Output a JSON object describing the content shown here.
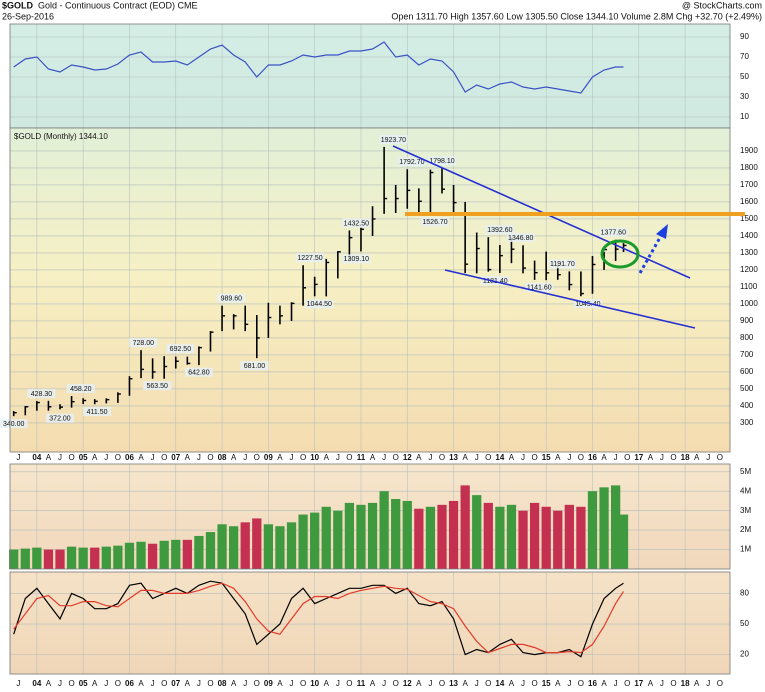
{
  "header": {
    "symbol": "$GOLD",
    "name": "Gold - Continuous Contract (EOD) CME",
    "date": "26-Sep-2016",
    "source": "@ StockCharts.com",
    "stats": "Open 1311.70 High 1357.60 Low 1305.50 Close 1344.10 Volume 2.8M Chg +32.70 (+2.49%)"
  },
  "chart_data": [
    {
      "type": "line",
      "xlim": [
        2003.42,
        2018.97
      ],
      "ylim": [
        -1,
        103
      ],
      "yticks": [
        90,
        70,
        50,
        30,
        10
      ],
      "x": [
        2003.5,
        2003.75,
        2004,
        2004.25,
        2004.5,
        2004.75,
        2005,
        2005.25,
        2005.5,
        2005.75,
        2006,
        2006.25,
        2006.5,
        2006.75,
        2007,
        2007.25,
        2007.5,
        2007.75,
        2008,
        2008.25,
        2008.5,
        2008.75,
        2009,
        2009.25,
        2009.5,
        2009.75,
        2010,
        2010.25,
        2010.5,
        2010.75,
        2011,
        2011.25,
        2011.5,
        2011.75,
        2012,
        2012.25,
        2012.5,
        2012.75,
        2013,
        2013.25,
        2013.5,
        2013.75,
        2014,
        2014.25,
        2014.5,
        2014.75,
        2015,
        2015.25,
        2015.5,
        2015.75,
        2016,
        2016.25,
        2016.5,
        2016.67
      ],
      "series": [
        {
          "color": "#3a52c4",
          "values": [
            60,
            68,
            70,
            58,
            55,
            62,
            60,
            57,
            58,
            63,
            72,
            75,
            65,
            65,
            66,
            62,
            70,
            78,
            82,
            72,
            65,
            50,
            62,
            62,
            66,
            72,
            70,
            72,
            72,
            76,
            76,
            78,
            85,
            70,
            72,
            62,
            68,
            66,
            55,
            35,
            42,
            38,
            43,
            45,
            40,
            38,
            40,
            38,
            36,
            34,
            50,
            57,
            60,
            60
          ]
        }
      ]
    },
    {
      "type": "ohlc",
      "title": "$GOLD (Monthly) 1344.10",
      "xlim": [
        2003.42,
        2018.97
      ],
      "ylim": [
        129,
        2035
      ],
      "yticks": [
        1900,
        1800,
        1700,
        1600,
        1500,
        1400,
        1300,
        1200,
        1100,
        1000,
        900,
        800,
        700,
        600,
        500,
        400,
        300
      ],
      "xticks": [
        {
          "value": 2004,
          "label": "04"
        },
        {
          "value": 2005,
          "label": "05"
        },
        {
          "value": 2006,
          "label": "06"
        },
        {
          "value": 2007,
          "label": "07"
        },
        {
          "value": 2008,
          "label": "08"
        },
        {
          "value": 2009,
          "label": "09"
        },
        {
          "value": 2010,
          "label": "10"
        },
        {
          "value": 2011,
          "label": "11"
        },
        {
          "value": 2012,
          "label": "12"
        },
        {
          "value": 2013,
          "label": "13"
        },
        {
          "value": 2014,
          "label": "14"
        },
        {
          "value": 2015,
          "label": "15"
        },
        {
          "value": 2016,
          "label": "16"
        },
        {
          "value": 2017,
          "label": "17"
        },
        {
          "value": 2018,
          "label": "18"
        }
      ],
      "month_ticks": [
        {
          "value": 2003.6,
          "label": "J"
        },
        {
          "value": 2004.25,
          "label": "A"
        },
        {
          "value": 2004.5,
          "label": "J"
        },
        {
          "value": 2004.75,
          "label": "O"
        },
        {
          "value": 2005.25,
          "label": "A"
        },
        {
          "value": 2005.5,
          "label": "J"
        },
        {
          "value": 2005.75,
          "label": "O"
        },
        {
          "value": 2006.25,
          "label": "A"
        },
        {
          "value": 2006.5,
          "label": "J"
        },
        {
          "value": 2006.75,
          "label": "O"
        },
        {
          "value": 2007.25,
          "label": "A"
        },
        {
          "value": 2007.5,
          "label": "J"
        },
        {
          "value": 2007.75,
          "label": "O"
        },
        {
          "value": 2008.25,
          "label": "A"
        },
        {
          "value": 2008.5,
          "label": "J"
        },
        {
          "value": 2008.75,
          "label": "O"
        },
        {
          "value": 2009.25,
          "label": "A"
        },
        {
          "value": 2009.5,
          "label": "J"
        },
        {
          "value": 2009.75,
          "label": "O"
        },
        {
          "value": 2010.25,
          "label": "A"
        },
        {
          "value": 2010.5,
          "label": "J"
        },
        {
          "value": 2010.75,
          "label": "O"
        },
        {
          "value": 2011.25,
          "label": "A"
        },
        {
          "value": 2011.5,
          "label": "J"
        },
        {
          "value": 2011.75,
          "label": "O"
        },
        {
          "value": 2012.25,
          "label": "A"
        },
        {
          "value": 2012.5,
          "label": "J"
        },
        {
          "value": 2012.75,
          "label": "O"
        },
        {
          "value": 2013.25,
          "label": "A"
        },
        {
          "value": 2013.5,
          "label": "J"
        },
        {
          "value": 2013.75,
          "label": "O"
        },
        {
          "value": 2014.25,
          "label": "A"
        },
        {
          "value": 2014.5,
          "label": "J"
        },
        {
          "value": 2014.75,
          "label": "O"
        },
        {
          "value": 2015.25,
          "label": "A"
        },
        {
          "value": 2015.5,
          "label": "J"
        },
        {
          "value": 2015.75,
          "label": "O"
        },
        {
          "value": 2016.25,
          "label": "A"
        },
        {
          "value": 2016.5,
          "label": "J"
        },
        {
          "value": 2016.75,
          "label": "O"
        },
        {
          "value": 2017.25,
          "label": "A"
        },
        {
          "value": 2017.5,
          "label": "J"
        },
        {
          "value": 2017.75,
          "label": "O"
        },
        {
          "value": 2018.25,
          "label": "A"
        },
        {
          "value": 2018.5,
          "label": "J"
        },
        {
          "value": 2018.75,
          "label": "O"
        }
      ],
      "color": "#000000",
      "x": [
        2003.5,
        2003.75,
        2004,
        2004.25,
        2004.5,
        2004.75,
        2005,
        2005.25,
        2005.5,
        2005.75,
        2006,
        2006.25,
        2006.5,
        2006.75,
        2007,
        2007.25,
        2007.5,
        2007.75,
        2008,
        2008.25,
        2008.5,
        2008.75,
        2009,
        2009.25,
        2009.5,
        2009.75,
        2010,
        2010.25,
        2010.5,
        2010.75,
        2011,
        2011.25,
        2011.5,
        2011.75,
        2012,
        2012.25,
        2012.5,
        2012.75,
        2013,
        2013.25,
        2013.5,
        2013.75,
        2014,
        2014.25,
        2014.5,
        2014.75,
        2015,
        2015.25,
        2015.5,
        2015.75,
        2016,
        2016.25,
        2016.5,
        2016.67
      ],
      "high": [
        370,
        400,
        428.3,
        430,
        410,
        458.2,
        445,
        440,
        445,
        480,
        575,
        728,
        680,
        692.5,
        690,
        690,
        750,
        840,
        989.6,
        940,
        990,
        935,
        1007,
        990,
        1010,
        1227.5,
        1160,
        1265,
        1310,
        1432.5,
        1448,
        1575,
        1923.7,
        1700,
        1792.7,
        1680,
        1790,
        1798.1,
        1700,
        1600,
        1420,
        1392.6,
        1346.8,
        1392,
        1345,
        1255,
        1308,
        1232,
        1191.7,
        1191,
        1282,
        1307,
        1377.6,
        1357.6
      ],
      "low": [
        340,
        345,
        372,
        372,
        380,
        390,
        411.5,
        410,
        415,
        418,
        460,
        563.5,
        560,
        560,
        620,
        642.8,
        640,
        720,
        840,
        850,
        840,
        681,
        800,
        880,
        900,
        990,
        1045,
        1044.5,
        1150,
        1250,
        1309.1,
        1400,
        1530,
        1535,
        1560,
        1530,
        1527,
        1650,
        1526.7,
        1181.4,
        1180,
        1190,
        1182,
        1240,
        1180,
        1141.6,
        1140,
        1142,
        1080,
        1045.4,
        1060,
        1200,
        1253,
        1305.5
      ],
      "close": [
        360,
        395,
        420,
        395,
        393,
        425,
        432,
        427,
        437,
        470,
        560,
        615,
        600,
        632,
        663,
        650,
        743,
        834,
        930,
        930,
        880,
        800,
        920,
        930,
        1003,
        1095,
        1115,
        1244,
        1307,
        1390,
        1439,
        1500,
        1620,
        1620,
        1668,
        1604,
        1773,
        1675,
        1596,
        1234,
        1326,
        1202,
        1284,
        1322,
        1211,
        1184,
        1183,
        1172,
        1114,
        1061,
        1232,
        1320,
        1322,
        1344.1
      ],
      "annotations": [
        {
          "x": 2003.5,
          "value": 340,
          "label": "340.00"
        },
        {
          "x": 2004.1,
          "value": 428.3,
          "label": "428.30"
        },
        {
          "x": 2004.5,
          "value": 372,
          "label": "372.00"
        },
        {
          "x": 2004.95,
          "value": 458.2,
          "label": "458.20"
        },
        {
          "x": 2005.3,
          "value": 411.5,
          "label": "411.50"
        },
        {
          "x": 2006.3,
          "value": 728,
          "label": "728.00"
        },
        {
          "x": 2006.6,
          "value": 563.5,
          "label": "563.50"
        },
        {
          "x": 2007.1,
          "value": 692.5,
          "label": "692.50"
        },
        {
          "x": 2007.5,
          "value": 642.8,
          "label": "642.80"
        },
        {
          "x": 2008.2,
          "value": 989.6,
          "label": "989.60"
        },
        {
          "x": 2008.7,
          "value": 681,
          "label": "681.00"
        },
        {
          "x": 2009.9,
          "value": 1227.5,
          "label": "1227.50"
        },
        {
          "x": 2010.1,
          "value": 1044.5,
          "label": "1044.50"
        },
        {
          "x": 2010.9,
          "value": 1432.5,
          "label": "1432.50"
        },
        {
          "x": 2010.9,
          "value": 1309.1,
          "label": "1309.10"
        },
        {
          "x": 2011.7,
          "value": 1923.7,
          "label": "1923.70"
        },
        {
          "x": 2012.1,
          "value": 1792.7,
          "label": "1792.70"
        },
        {
          "x": 2012.75,
          "value": 1798.1,
          "label": "1798.10"
        },
        {
          "x": 2012.6,
          "value": 1526.7,
          "label": "1526.70"
        },
        {
          "x": 2014.0,
          "value": 1392.6,
          "label": "1392.60"
        },
        {
          "x": 2014.45,
          "value": 1346.8,
          "label": "1346.80"
        },
        {
          "x": 2013.9,
          "value": 1181.4,
          "label": "1181.40"
        },
        {
          "x": 2015.35,
          "value": 1191.7,
          "label": "1191.70"
        },
        {
          "x": 2014.85,
          "value": 1141.6,
          "label": "1141.60"
        },
        {
          "x": 2015.9,
          "value": 1045.4,
          "label": "1045.40"
        },
        {
          "x": 2016.45,
          "value": 1377.6,
          "label": "1377.60"
        }
      ]
    },
    {
      "type": "bar",
      "xlim": [
        2003.42,
        2018.97
      ],
      "ylim": [
        0,
        5400000
      ],
      "up_color": "#3f9a3f",
      "down_color": "#c4304f",
      "yticks": [
        {
          "value": 5000000,
          "label": "5M"
        },
        {
          "value": 4000000,
          "label": "4M"
        },
        {
          "value": 3000000,
          "label": "3M"
        },
        {
          "value": 2000000,
          "label": "2M"
        },
        {
          "value": 1000000,
          "label": "1M"
        }
      ],
      "x": [
        2003.5,
        2003.75,
        2004,
        2004.25,
        2004.5,
        2004.75,
        2005,
        2005.25,
        2005.5,
        2005.75,
        2006,
        2006.25,
        2006.5,
        2006.75,
        2007,
        2007.25,
        2007.5,
        2007.75,
        2008,
        2008.25,
        2008.5,
        2008.75,
        2009,
        2009.25,
        2009.5,
        2009.75,
        2010,
        2010.25,
        2010.5,
        2010.75,
        2011,
        2011.25,
        2011.5,
        2011.75,
        2012,
        2012.25,
        2012.5,
        2012.75,
        2013,
        2013.25,
        2013.5,
        2013.75,
        2014,
        2014.25,
        2014.5,
        2014.75,
        2015,
        2015.25,
        2015.5,
        2015.75,
        2016,
        2016.25,
        2016.5,
        2016.67
      ],
      "values": [
        1000000,
        1050000,
        1100000,
        1000000,
        1000000,
        1150000,
        1100000,
        1100000,
        1150000,
        1200000,
        1350000,
        1400000,
        1300000,
        1450000,
        1500000,
        1500000,
        1700000,
        1900000,
        2300000,
        2200000,
        2400000,
        2600000,
        2300000,
        2200000,
        2400000,
        2800000,
        2900000,
        3200000,
        3000000,
        3400000,
        3300000,
        3400000,
        4000000,
        3600000,
        3500000,
        3100000,
        3200000,
        3300000,
        3500000,
        4300000,
        3800000,
        3400000,
        3200000,
        3300000,
        3000000,
        3400000,
        3200000,
        3000000,
        3300000,
        3200000,
        4000000,
        4200000,
        4300000,
        2800000
      ]
    },
    {
      "type": "line",
      "xlim": [
        2003.42,
        2018.97
      ],
      "ylim": [
        1,
        101
      ],
      "yticks": [
        80,
        50,
        20
      ],
      "x": [
        2003.5,
        2003.75,
        2004,
        2004.25,
        2004.5,
        2004.75,
        2005,
        2005.25,
        2005.5,
        2005.75,
        2006,
        2006.25,
        2006.5,
        2006.75,
        2007,
        2007.25,
        2007.5,
        2007.75,
        2008,
        2008.25,
        2008.5,
        2008.75,
        2009,
        2009.25,
        2009.5,
        2009.75,
        2010,
        2010.25,
        2010.5,
        2010.75,
        2011,
        2011.25,
        2011.5,
        2011.75,
        2012,
        2012.25,
        2012.5,
        2012.75,
        2013,
        2013.25,
        2013.5,
        2013.75,
        2014,
        2014.25,
        2014.5,
        2014.75,
        2015,
        2015.25,
        2015.5,
        2015.75,
        2016,
        2016.25,
        2016.5,
        2016.67
      ],
      "series": [
        {
          "color": "#000000",
          "values": [
            40,
            75,
            85,
            70,
            55,
            80,
            75,
            65,
            65,
            70,
            88,
            90,
            75,
            80,
            85,
            80,
            88,
            92,
            90,
            75,
            60,
            30,
            40,
            50,
            75,
            85,
            70,
            75,
            80,
            85,
            85,
            88,
            88,
            80,
            85,
            70,
            68,
            72,
            55,
            20,
            25,
            22,
            30,
            35,
            22,
            20,
            22,
            22,
            25,
            18,
            50,
            75,
            85,
            90
          ]
        },
        {
          "color": "#e23a2a",
          "values": [
            45,
            60,
            75,
            78,
            68,
            68,
            72,
            72,
            68,
            67,
            75,
            83,
            83,
            80,
            80,
            80,
            83,
            87,
            90,
            85,
            72,
            55,
            43,
            40,
            55,
            70,
            77,
            77,
            75,
            80,
            83,
            85,
            87,
            85,
            84,
            78,
            72,
            70,
            65,
            48,
            33,
            22,
            26,
            30,
            30,
            27,
            22,
            22,
            23,
            22,
            30,
            48,
            70,
            82
          ]
        }
      ]
    }
  ]
}
